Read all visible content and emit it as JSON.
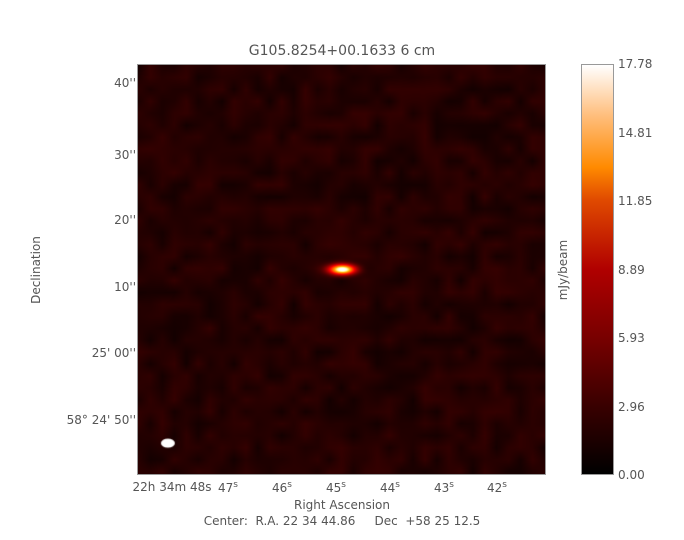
{
  "chart_data": {
    "type": "heatmap",
    "title": "G105.8254+00.1633 6 cm",
    "xlabel": "Right Ascension",
    "ylabel": "Declination",
    "x_ticks": [
      {
        "label": "22h 34m 48s",
        "parts": [
          "22",
          "h",
          " 34",
          "m",
          " 48",
          "s"
        ]
      },
      {
        "label": "47s",
        "parts": [
          "47",
          "s"
        ]
      },
      {
        "label": "46s",
        "parts": [
          "46",
          "s"
        ]
      },
      {
        "label": "45s",
        "parts": [
          "45",
          "s"
        ]
      },
      {
        "label": "44s",
        "parts": [
          "44",
          "s"
        ]
      },
      {
        "label": "43s",
        "parts": [
          "43",
          "s"
        ]
      },
      {
        "label": "42s",
        "parts": [
          "42",
          "s"
        ]
      }
    ],
    "y_ticks": [
      "40''",
      "30''",
      "20''",
      "10''",
      "25' 00''",
      "58° 24' 50''"
    ],
    "y_tick_first_parts": [
      "58",
      "o",
      " 24' 50''"
    ],
    "colorbar": {
      "label": "mJy/beam",
      "ticks": [
        "17.78",
        "14.81",
        "11.85",
        "8.89",
        "5.93",
        "2.96",
        "0.00"
      ],
      "range": [
        0.0,
        17.78
      ],
      "colormap": "heat (black-red-orange-white)"
    },
    "beam": {
      "color": "#ffffff",
      "position": "bottom-left"
    },
    "footer": "Center:  R.A. 22 34 44.86     Dec  +58 25 12.5"
  }
}
